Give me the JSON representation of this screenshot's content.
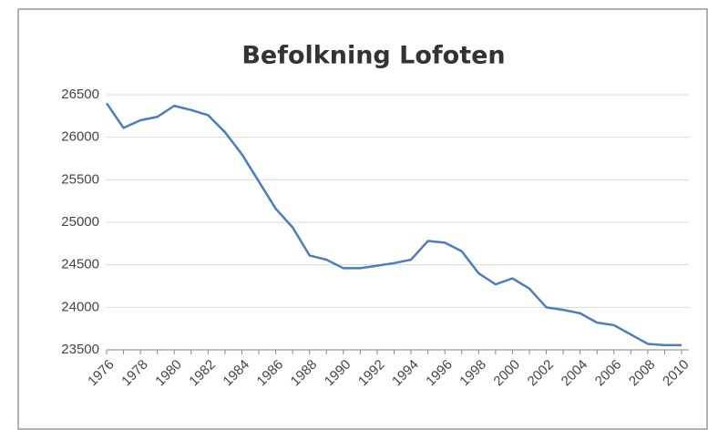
{
  "chart_data": {
    "type": "line",
    "title": "Befolkning Lofoten",
    "categories": [
      "1976",
      null,
      "1978",
      null,
      "1980",
      null,
      "1982",
      null,
      "1984",
      null,
      "1986",
      null,
      "1988",
      null,
      "1990",
      null,
      "1992",
      null,
      "1994",
      null,
      "1996",
      null,
      "1998",
      null,
      "2000",
      null,
      "2002",
      null,
      "2004",
      null,
      "2006",
      null,
      "2008",
      null,
      "2010"
    ],
    "series": [
      {
        "name": "Befolkning",
        "color": "#4a7ebb",
        "values": [
          26400,
          26110,
          26200,
          26240,
          26370,
          26320,
          26260,
          26060,
          25800,
          25480,
          25160,
          24940,
          24610,
          24560,
          24460,
          24460,
          24490,
          24520,
          24560,
          24780,
          24760,
          24660,
          24400,
          24270,
          24340,
          24220,
          24000,
          23970,
          23930,
          23820,
          23790,
          23680,
          23570,
          23555,
          23555
        ]
      }
    ],
    "ylim": [
      23500,
      26500
    ],
    "yticks": [
      23500,
      24000,
      24500,
      25000,
      25500,
      26000,
      26500
    ],
    "grid": true
  }
}
